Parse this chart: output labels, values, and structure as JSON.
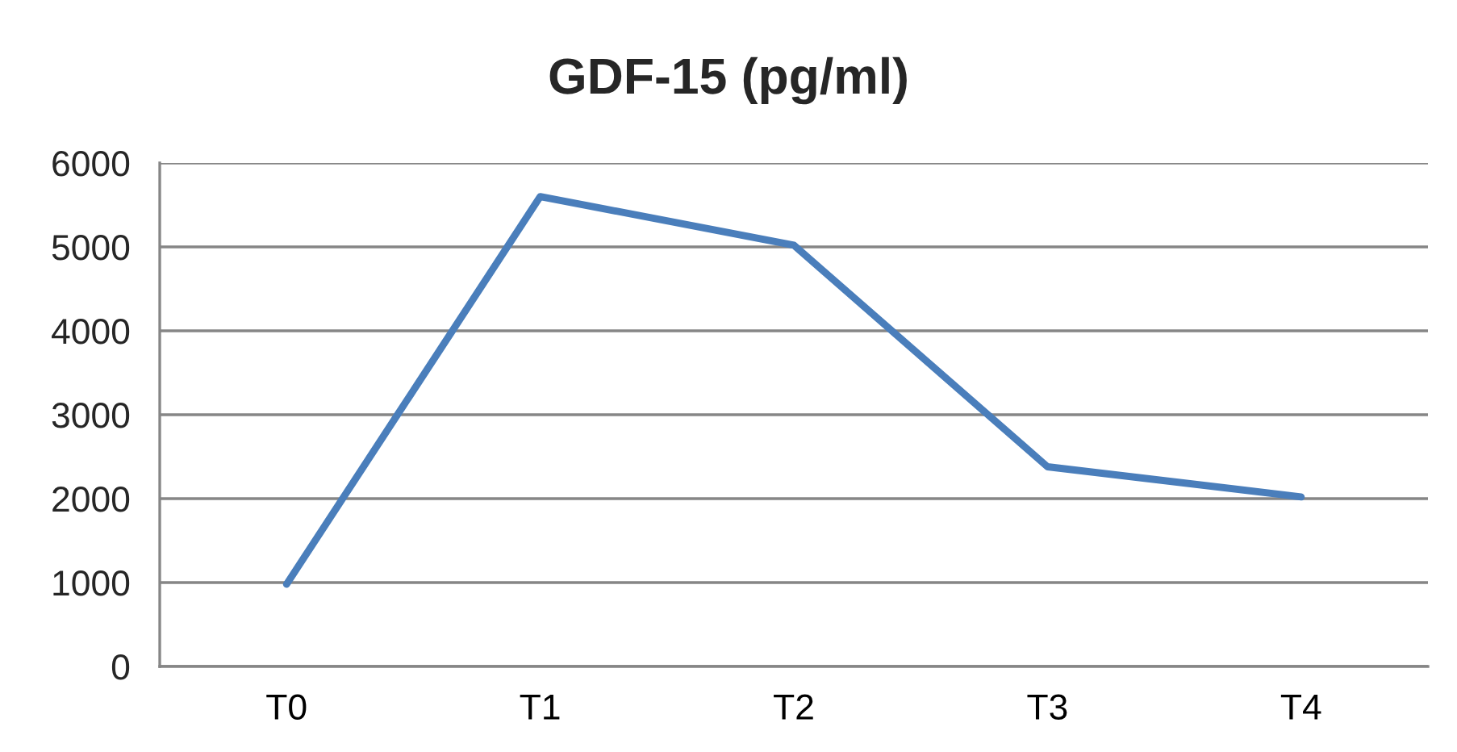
{
  "chart_data": {
    "type": "line",
    "title": "GDF-15 (pg/ml)",
    "categories": [
      "T0",
      "T1",
      "T2",
      "T3",
      "T4"
    ],
    "series": [
      {
        "color": "#4a7ebb",
        "values": [
          980,
          5600,
          5020,
          2380,
          2020
        ]
      }
    ],
    "ylim": [
      0,
      6000
    ],
    "yticks": [
      0,
      1000,
      2000,
      3000,
      4000,
      5000,
      6000
    ],
    "grid": "y"
  }
}
